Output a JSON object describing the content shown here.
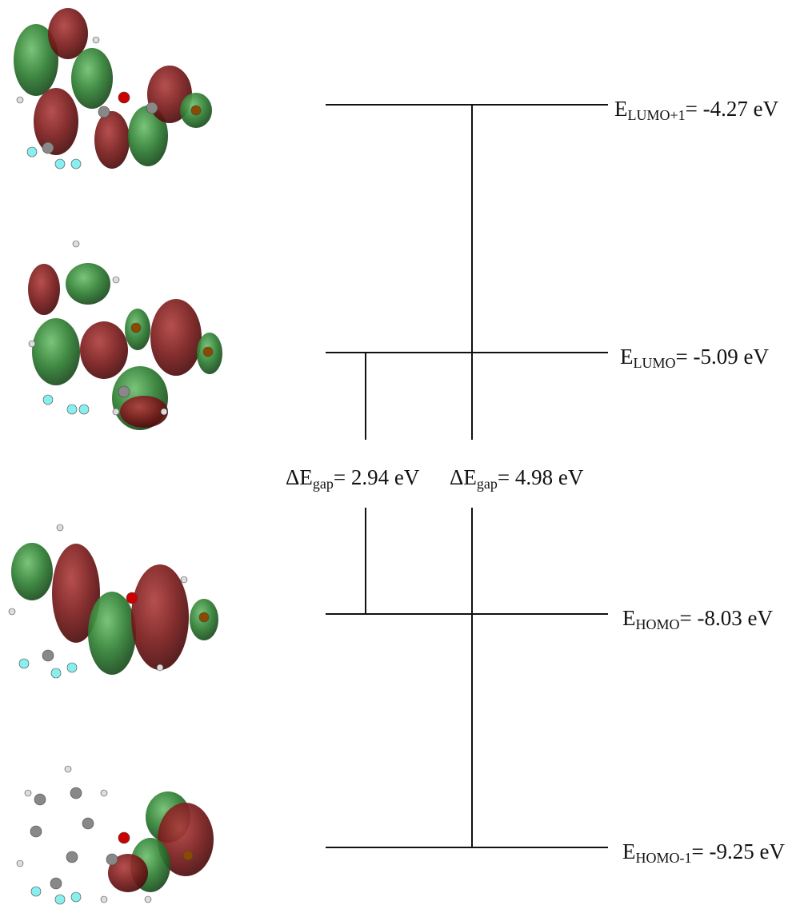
{
  "levels": [
    {
      "symbol": "E",
      "subscript": "LUMO+1",
      "value": "= -4.27 eV"
    },
    {
      "symbol": "E",
      "subscript": "LUMO",
      "value": "= -5.09 eV"
    },
    {
      "symbol": "E",
      "subscript": "HOMO",
      "value": "= -8.03 eV"
    },
    {
      "symbol": "E",
      "subscript": "HOMO-1",
      "value": "= -9.25 eV"
    }
  ],
  "gaps": [
    {
      "symbol": "ΔE",
      "subscript": "gap",
      "value": "= 2.94 eV"
    },
    {
      "symbol": "ΔE",
      "subscript": "gap",
      "value": "= 4.98 eV"
    }
  ]
}
